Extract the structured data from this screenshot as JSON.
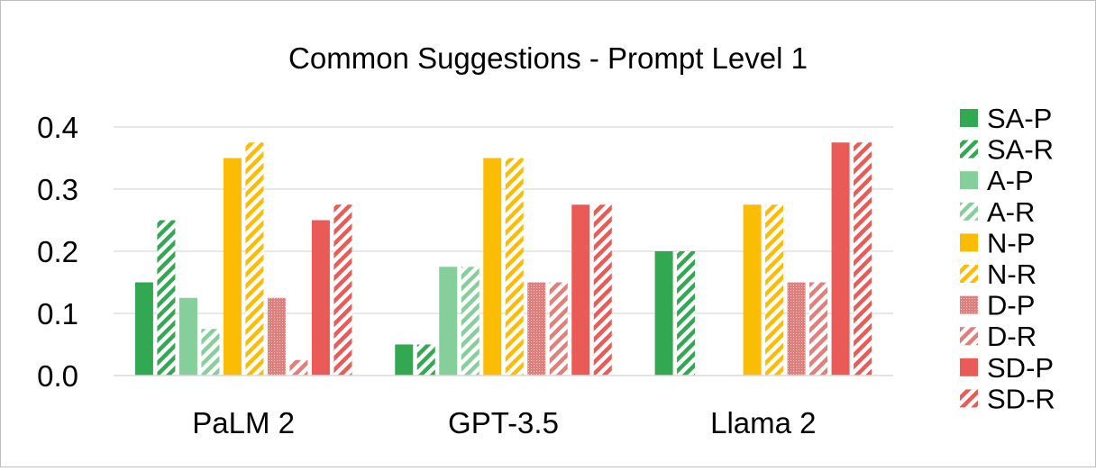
{
  "chart_data": {
    "type": "bar",
    "title": "Common Suggestions - Prompt Level 1",
    "xlabel": "",
    "ylabel": "",
    "ylim": [
      0,
      0.4
    ],
    "yticks": [
      "0.0",
      "0.1",
      "0.2",
      "0.3",
      "0.4"
    ],
    "grid": true,
    "legend_position": "right",
    "categories": [
      "PaLM 2",
      "GPT-3.5",
      "Llama 2"
    ],
    "series": [
      {
        "name": "SA-P",
        "values": [
          0.15,
          0.05,
          0.2
        ],
        "color": "#33a852",
        "pattern": "solid"
      },
      {
        "name": "SA-R",
        "values": [
          0.25,
          0.05,
          0.2
        ],
        "color": "#33a852",
        "pattern": "hatch"
      },
      {
        "name": "A-P",
        "values": [
          0.125,
          0.175,
          0
        ],
        "color": "#85cf9b",
        "pattern": "solid"
      },
      {
        "name": "A-R",
        "values": [
          0.075,
          0.175,
          0
        ],
        "color": "#85cf9b",
        "pattern": "hatch"
      },
      {
        "name": "N-P",
        "values": [
          0.35,
          0.35,
          0.275
        ],
        "color": "#fbbc04",
        "pattern": "solid"
      },
      {
        "name": "N-R",
        "values": [
          0.375,
          0.35,
          0.275
        ],
        "color": "#fbbc04",
        "pattern": "hatch"
      },
      {
        "name": "D-P",
        "values": [
          0.125,
          0.15,
          0.15
        ],
        "color": "#e07f7c",
        "pattern": "dense"
      },
      {
        "name": "D-R",
        "values": [
          0.025,
          0.15,
          0.15
        ],
        "color": "#e07f7c",
        "pattern": "hatch"
      },
      {
        "name": "SD-P",
        "values": [
          0.25,
          0.275,
          0.375
        ],
        "color": "#ea5a56",
        "pattern": "solid"
      },
      {
        "name": "SD-R",
        "values": [
          0.275,
          0.275,
          0.375
        ],
        "color": "#ea5a56",
        "pattern": "hatch"
      }
    ]
  }
}
